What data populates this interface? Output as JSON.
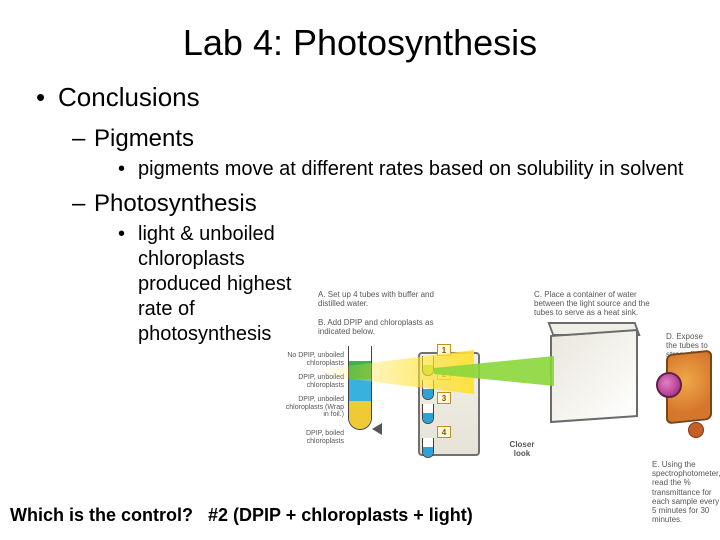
{
  "title": "Lab 4: Photosynthesis",
  "bullets": {
    "l1": "Conclusions",
    "l2a": "Pigments",
    "l3a": "pigments move at different rates based on solubility in solvent",
    "l2b": "Photosynthesis",
    "l3b": "light & unboiled chloroplasts produced highest rate of photosynthesis"
  },
  "bottom": {
    "question": "Which is the control?",
    "answer": "#2 (DPIP + chloroplasts + light)"
  },
  "diagram": {
    "captions": {
      "A": "A. Set up 4 tubes with buffer and distilled water.",
      "B": "B. Add DPIP and chloroplasts as indicated below.",
      "C": "C. Place a container of water between the light source and the tubes to serve as a heat sink.",
      "D": "D. Expose the tubes to strong light.",
      "E": "E. Using the spectrophotometer, read the % transmittance for each sample every 5 minutes for 30 minutes."
    },
    "tube_labels": {
      "t1": "No DPIP, unboiled chloroplasts",
      "t2": "DPIP, unboiled chloroplasts",
      "t3": "DPIP, unboiled chloroplasts (Wrap in foil.)",
      "t4": "DPIP, boiled chloroplasts"
    },
    "tube_nums": {
      "n1": "1",
      "n2": "2",
      "n3": "3",
      "n4": "4"
    },
    "closer_look": "Closer look",
    "colors": {
      "tube_green": "#9fe64d",
      "tube_blue": "#2aa3d9",
      "closer_bottom": "#efca35",
      "closer_mid": "#39b1df",
      "closer_top": "#3db24f",
      "beam_yellow": "#ffe132",
      "beam_green": "#8ad63a",
      "device_body": "#d6762c",
      "device_lens": "#b03a90",
      "tank_border": "#6b6b6b",
      "caption_text": "#565656"
    }
  }
}
